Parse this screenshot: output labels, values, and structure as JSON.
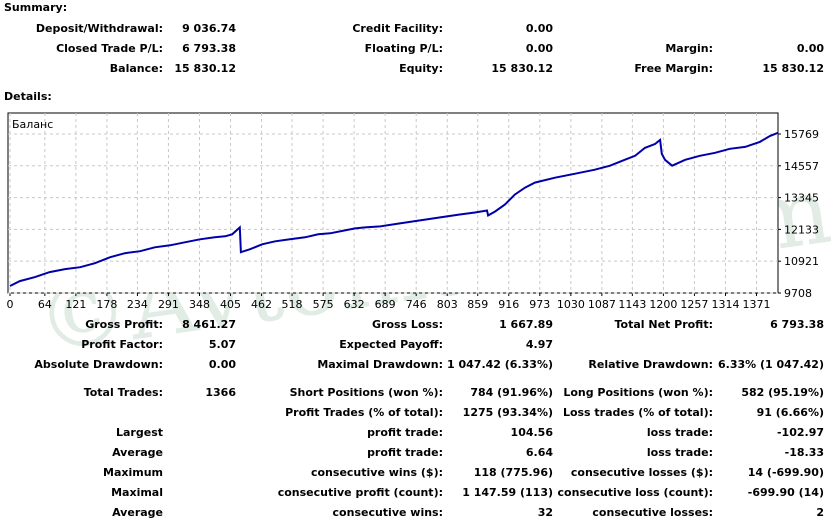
{
  "summary": {
    "title": "Summary:",
    "rows": [
      [
        {
          "label": "Deposit/Withdrawal:",
          "value": "9 036.74"
        },
        {
          "label": "Credit Facility:",
          "value": "0.00"
        },
        {
          "label": "",
          "value": ""
        }
      ],
      [
        {
          "label": "Closed Trade P/L:",
          "value": "6 793.38"
        },
        {
          "label": "Floating P/L:",
          "value": "0.00"
        },
        {
          "label": "Margin:",
          "value": "0.00"
        }
      ],
      [
        {
          "label": "Balance:",
          "value": "15 830.12"
        },
        {
          "label": "Equity:",
          "value": "15 830.12"
        },
        {
          "label": "Free Margin:",
          "value": "15 830.12"
        }
      ]
    ]
  },
  "details": {
    "title": "Details:",
    "rows": [
      [
        {
          "label": "Gross Profit:",
          "value": "8 461.27"
        },
        {
          "label": "Gross Loss:",
          "value": "1 667.89"
        },
        {
          "label": "Total Net Profit:",
          "value": "6 793.38"
        }
      ],
      [
        {
          "label": "Profit Factor:",
          "value": "5.07"
        },
        {
          "label": "Expected Payoff:",
          "value": "4.97"
        },
        {
          "label": "",
          "value": ""
        }
      ],
      [
        {
          "label": "Absolute Drawdown:",
          "value": "0.00"
        },
        {
          "label": "Maximal Drawdown:",
          "value": "1 047.42 (6.33%)"
        },
        {
          "label": "Relative Drawdown:",
          "value": "6.33% (1 047.42)"
        }
      ],
      [
        {
          "label": "Total Trades:",
          "value": "1366"
        },
        {
          "label": "Short Positions (won %):",
          "value": "784 (91.96%)"
        },
        {
          "label": "Long Positions (won %):",
          "value": "582 (95.19%)"
        }
      ],
      [
        {
          "label": "",
          "value": ""
        },
        {
          "label": "Profit Trades (% of total):",
          "value": "1275 (93.34%)"
        },
        {
          "label": "Loss trades (% of total):",
          "value": "91 (6.66%)"
        }
      ],
      [
        {
          "label": "Largest",
          "value": ""
        },
        {
          "label": "profit trade:",
          "value": "104.56"
        },
        {
          "label": "loss trade:",
          "value": "-102.97"
        }
      ],
      [
        {
          "label": "Average",
          "value": ""
        },
        {
          "label": "profit trade:",
          "value": "6.64"
        },
        {
          "label": "loss trade:",
          "value": "-18.33"
        }
      ],
      [
        {
          "label": "Maximum",
          "value": ""
        },
        {
          "label": "consecutive wins ($):",
          "value": "118 (775.96)"
        },
        {
          "label": "consecutive losses ($):",
          "value": "14 (-699.90)"
        }
      ],
      [
        {
          "label": "Maximal",
          "value": ""
        },
        {
          "label": "consecutive profit (count):",
          "value": "1 147.59 (113)"
        },
        {
          "label": "consecutive loss (count):",
          "value": "-699.90 (14)"
        }
      ],
      [
        {
          "label": "Average",
          "value": ""
        },
        {
          "label": "consecutive wins:",
          "value": "32"
        },
        {
          "label": "consecutive losses:",
          "value": "2"
        }
      ]
    ]
  },
  "watermark": "©Avtomatfx.com",
  "chart_data": {
    "type": "line",
    "title": "Баланс",
    "xlim": [
      0,
      1413
    ],
    "ylim": [
      9708,
      15769
    ],
    "grid": true,
    "line_color": "#0000aa",
    "x_ticks": [
      "0",
      "64",
      "121",
      "178",
      "234",
      "291",
      "348",
      "405",
      "462",
      "518",
      "575",
      "632",
      "689",
      "746",
      "803",
      "859",
      "916",
      "973",
      "1030",
      "1087",
      "1143",
      "1200",
      "1257",
      "1314",
      "1371"
    ],
    "y_ticks": [
      "15769",
      "14557",
      "13345",
      "12133",
      "10921",
      "9708"
    ],
    "x": [
      0,
      18,
      46,
      73,
      101,
      129,
      156,
      184,
      211,
      239,
      266,
      294,
      321,
      349,
      376,
      395,
      408,
      422,
      424,
      441,
      463,
      487,
      514,
      542,
      566,
      588,
      615,
      634,
      652,
      680,
      716,
      753,
      790,
      826,
      854,
      876,
      878,
      891,
      909,
      927,
      946,
      964,
      1001,
      1038,
      1074,
      1102,
      1129,
      1148,
      1166,
      1185,
      1194,
      1197,
      1203,
      1216,
      1240,
      1267,
      1295,
      1322,
      1350,
      1377,
      1396,
      1410
    ],
    "y": [
      9973,
      10163,
      10314,
      10504,
      10618,
      10693,
      10845,
      11072,
      11224,
      11300,
      11451,
      11527,
      11641,
      11755,
      11830,
      11868,
      11944,
      12209,
      11262,
      11376,
      11565,
      11679,
      11755,
      11830,
      11944,
      11982,
      12096,
      12172,
      12209,
      12247,
      12361,
      12475,
      12588,
      12702,
      12778,
      12854,
      12664,
      12816,
      13081,
      13460,
      13725,
      13915,
      14104,
      14256,
      14408,
      14559,
      14787,
      14938,
      15241,
      15393,
      15545,
      15014,
      14787,
      14559,
      14787,
      14938,
      15052,
      15204,
      15279,
      15469,
      15696,
      15810
    ]
  }
}
